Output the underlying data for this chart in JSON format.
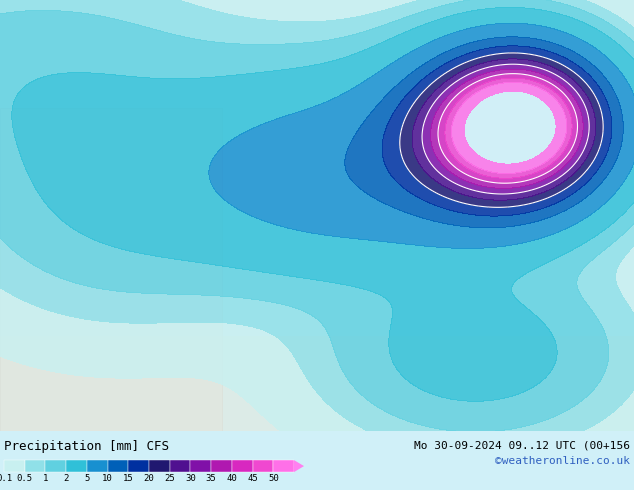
{
  "title_left": "Precipitation [mm] CFS",
  "title_right": "Mo 30-09-2024 09..12 UTC (00+156",
  "credit": "©weatheronline.co.uk",
  "colorbar_values": [
    0.1,
    0.5,
    1,
    2,
    5,
    10,
    15,
    20,
    25,
    30,
    35,
    40,
    45,
    50
  ],
  "colorbar_colors": [
    "#b0f0f0",
    "#80e8e8",
    "#50d8d8",
    "#20c8d8",
    "#1090d0",
    "#0050b0",
    "#003090",
    "#301880",
    "#6010a0",
    "#9010a0",
    "#c020b0",
    "#e030c0",
    "#f050d0",
    "#ff70e0"
  ],
  "background_color": "#d0f0f8",
  "map_bg": "#e8e8e8",
  "fig_width": 6.34,
  "fig_height": 4.9,
  "dpi": 100
}
